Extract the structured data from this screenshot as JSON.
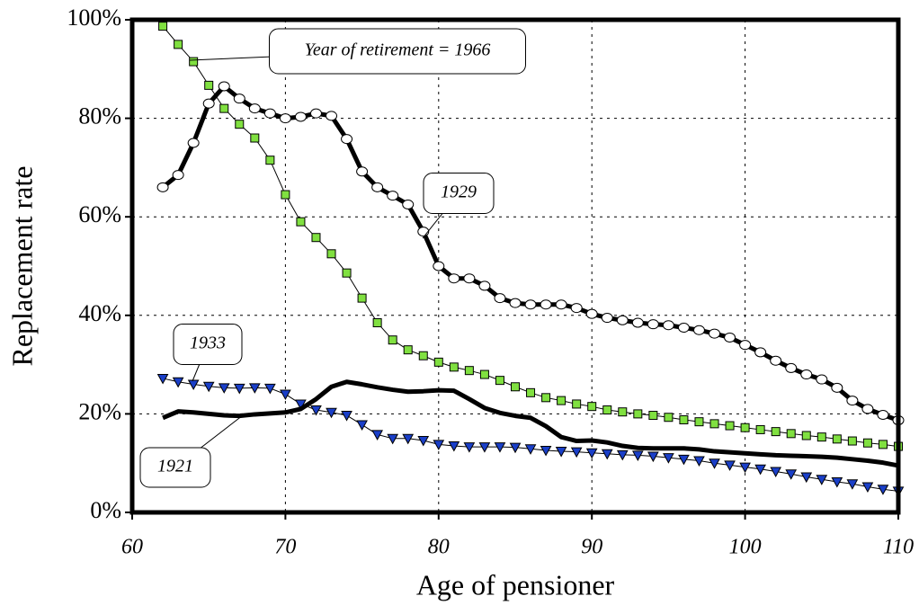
{
  "chart_data": {
    "type": "line",
    "x_label": "Age of pensioner",
    "y_label": "Replacement rate",
    "xlim": [
      60,
      110
    ],
    "xticks": [
      60,
      70,
      80,
      90,
      100,
      110
    ],
    "ylim": [
      0,
      100
    ],
    "yticks": [
      {
        "value": 0,
        "label": "0%"
      },
      {
        "value": 20,
        "label": "20%"
      },
      {
        "value": 40,
        "label": "40%"
      },
      {
        "value": 60,
        "label": "60%"
      },
      {
        "value": 80,
        "label": "80%"
      },
      {
        "value": 100,
        "label": "100%"
      }
    ],
    "grid": true,
    "x": [
      62,
      63,
      64,
      65,
      66,
      67,
      68,
      69,
      70,
      71,
      72,
      73,
      74,
      75,
      76,
      77,
      78,
      79,
      80,
      81,
      82,
      83,
      84,
      85,
      86,
      87,
      88,
      89,
      90,
      91,
      92,
      93,
      94,
      95,
      96,
      97,
      98,
      99,
      100,
      101,
      102,
      103,
      104,
      105,
      106,
      107,
      108,
      109,
      110
    ],
    "series": [
      {
        "name": "Year of retirement = 1966",
        "marker": "square",
        "color": "#80e040",
        "line_width": 1,
        "values": [
          98.7,
          95,
          91.5,
          86.7,
          82,
          78.8,
          76,
          71.5,
          64.5,
          59,
          55.8,
          52.5,
          48.6,
          43.5,
          38.5,
          35,
          33,
          31.8,
          30.5,
          29.5,
          28.8,
          28,
          26.8,
          25.5,
          24.3,
          23.3,
          22.7,
          22,
          21.5,
          20.8,
          20.4,
          20,
          19.7,
          19.3,
          18.8,
          18.4,
          18,
          17.6,
          17.2,
          16.8,
          16.4,
          16,
          15.6,
          15.3,
          14.9,
          14.5,
          14.1,
          13.8,
          13.4
        ]
      },
      {
        "name": "1929",
        "marker": "circle",
        "color": "#ffffff",
        "line_width": 5,
        "values": [
          66,
          68.5,
          75,
          83,
          86.5,
          84,
          82,
          81,
          80,
          80.3,
          81,
          80.5,
          75.8,
          69.2,
          66,
          64.3,
          62.5,
          57,
          50,
          47.5,
          47.5,
          46,
          43.5,
          42.5,
          42.2,
          42.2,
          42.2,
          41.5,
          40.3,
          39.5,
          39,
          38.5,
          38.2,
          38,
          37.5,
          37,
          36.3,
          35.5,
          34,
          32.5,
          30.8,
          29.3,
          28,
          27,
          25.3,
          22.7,
          21,
          19.8,
          18.7
        ]
      },
      {
        "name": "1933",
        "marker": "triangle",
        "color": "#1a3fc8",
        "line_width": 1,
        "values": [
          27.2,
          26.5,
          26,
          25.6,
          25.3,
          25.2,
          25.3,
          25.2,
          24,
          22,
          20.8,
          20.3,
          19.7,
          17.8,
          15.8,
          15,
          15,
          14.6,
          13.8,
          13.5,
          13.3,
          13.3,
          13.3,
          13.2,
          12.9,
          12.6,
          12.4,
          12.3,
          12.1,
          11.9,
          11.7,
          11.6,
          11.4,
          11.1,
          10.8,
          10.5,
          10,
          9.6,
          9.2,
          8.8,
          8.3,
          7.8,
          7.2,
          6.7,
          6.2,
          5.8,
          5.2,
          4.7,
          4.3
        ]
      },
      {
        "name": "1921",
        "marker": "none",
        "color": "#000000",
        "line_width": 5,
        "values": [
          19.2,
          20.5,
          20.3,
          20,
          19.7,
          19.6,
          19.9,
          20.1,
          20.3,
          21,
          23,
          25.5,
          26.5,
          26,
          25.4,
          24.9,
          24.5,
          24.6,
          24.8,
          24.7,
          23,
          21.2,
          20.2,
          19.6,
          19.2,
          17.5,
          15.3,
          14.5,
          14.6,
          14.2,
          13.5,
          13.1,
          13,
          13,
          13,
          12.8,
          12.4,
          12.2,
          12,
          11.8,
          11.6,
          11.5,
          11.4,
          11.3,
          11.1,
          10.8,
          10.5,
          10.1,
          9.5
        ]
      }
    ]
  }
}
